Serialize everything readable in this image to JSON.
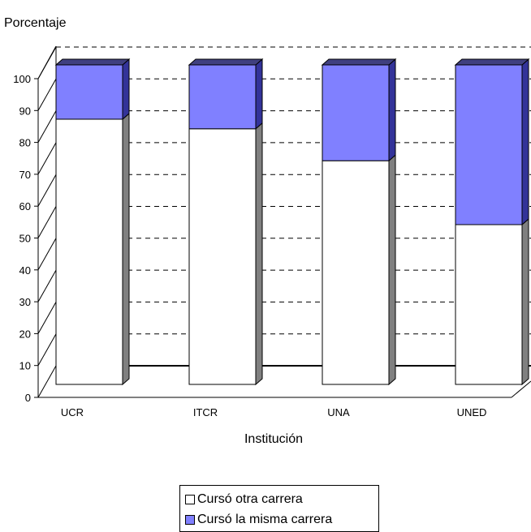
{
  "chart_data": {
    "type": "bar",
    "stacked": true,
    "three_d": true,
    "categories": [
      "UCR",
      "ITCR",
      "UNA",
      "UNED"
    ],
    "series": [
      {
        "name": "Cursó otra carrera",
        "values": [
          83,
          80,
          70,
          50
        ],
        "color": "#FFFFFF"
      },
      {
        "name": "Cursó la misma carrera",
        "values": [
          17,
          20,
          30,
          50
        ],
        "color": "#8080FF"
      }
    ],
    "ylabel": "Porcentaje",
    "xlabel": "Institución",
    "ylim": [
      0,
      100
    ],
    "yticks": [
      0,
      10,
      20,
      30,
      40,
      50,
      60,
      70,
      80,
      90,
      100
    ],
    "grid": true,
    "legend_position": "bottom"
  },
  "colors": {
    "side_face": "#808080",
    "top_face_misma": "#404080",
    "side_face_misma": "#333399",
    "axis": "#000000"
  }
}
